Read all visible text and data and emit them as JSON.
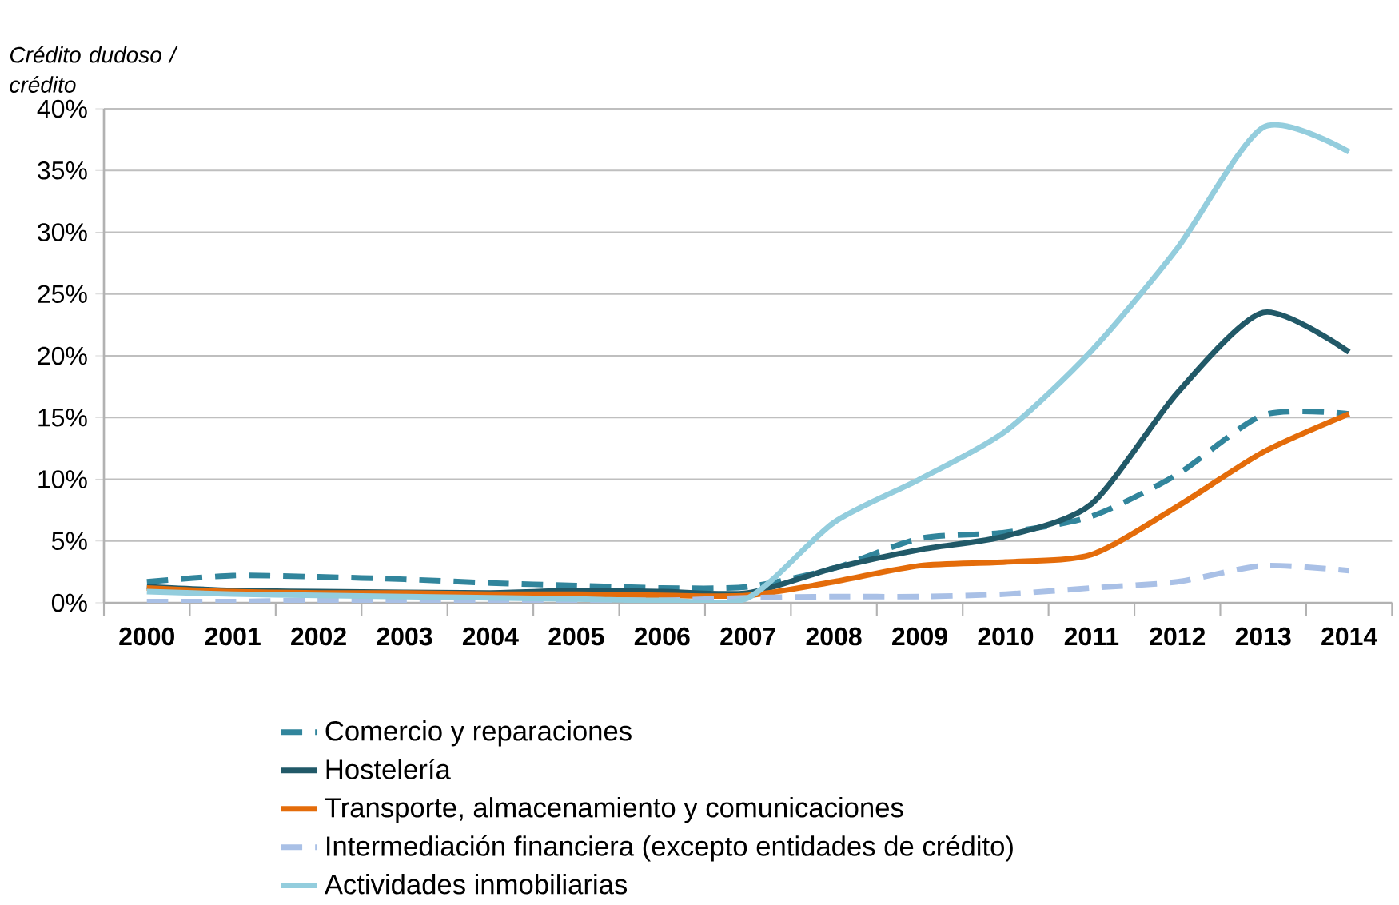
{
  "chart_data": {
    "type": "line",
    "ylabel": "Crédito dudoso / crédito",
    "categories": [
      "2000",
      "2001",
      "2002",
      "2003",
      "2004",
      "2005",
      "2006",
      "2007",
      "2008",
      "2009",
      "2010",
      "2011",
      "2012",
      "2013",
      "2014"
    ],
    "series": [
      {
        "name": "Comercio y reparaciones",
        "color": "#31859c",
        "line_style": "dashed",
        "values": [
          1.7,
          2.2,
          2.1,
          1.9,
          1.6,
          1.4,
          1.2,
          1.3,
          2.8,
          5.2,
          5.7,
          7.0,
          10.4,
          15.2,
          15.3
        ]
      },
      {
        "name": "Hostelería",
        "color": "#215968",
        "line_style": "solid",
        "values": [
          1.3,
          1.0,
          0.9,
          null,
          0.8,
          1.0,
          0.9,
          0.8,
          2.8,
          4.3,
          5.4,
          8.0,
          17.0,
          23.5,
          20.3
        ]
      },
      {
        "name": "Transporte, almacenamiento y comunicaciones",
        "color": "#e46c0a",
        "line_style": "solid",
        "values": [
          1.2,
          0.9,
          0.8,
          0.8,
          0.7,
          0.7,
          0.6,
          0.6,
          1.7,
          3.0,
          3.3,
          3.9,
          7.8,
          12.2,
          15.3
        ]
      },
      {
        "name": "Intermediación financiera (excepto entidades de crédito)",
        "color": "#a9c0e6",
        "line_style": "dashed",
        "values": [
          0.1,
          0.1,
          0.2,
          0.2,
          0.2,
          0.2,
          0.2,
          0.4,
          0.5,
          0.5,
          0.7,
          1.2,
          1.7,
          3.0,
          2.6
        ]
      },
      {
        "name": "Actividades inmobiliarias",
        "color": "#93cddd",
        "line_style": "solid",
        "values": [
          0.9,
          0.7,
          0.6,
          0.5,
          0.4,
          0.3,
          0.2,
          0.4,
          6.5,
          10.0,
          13.9,
          20.4,
          28.7,
          38.5,
          36.5
        ]
      }
    ],
    "ylim": [
      0,
      40
    ],
    "yticks": [
      {
        "value": 0,
        "label": "0%"
      },
      {
        "value": 5,
        "label": "5%"
      },
      {
        "value": 10,
        "label": "10%"
      },
      {
        "value": 15,
        "label": "15%"
      },
      {
        "value": 20,
        "label": "20%"
      },
      {
        "value": 25,
        "label": "25%"
      },
      {
        "value": 30,
        "label": "30%"
      },
      {
        "value": 35,
        "label": "35%"
      },
      {
        "value": 40,
        "label": "40%"
      }
    ],
    "grid": "y",
    "legend": "bottom",
    "marker": "none"
  }
}
